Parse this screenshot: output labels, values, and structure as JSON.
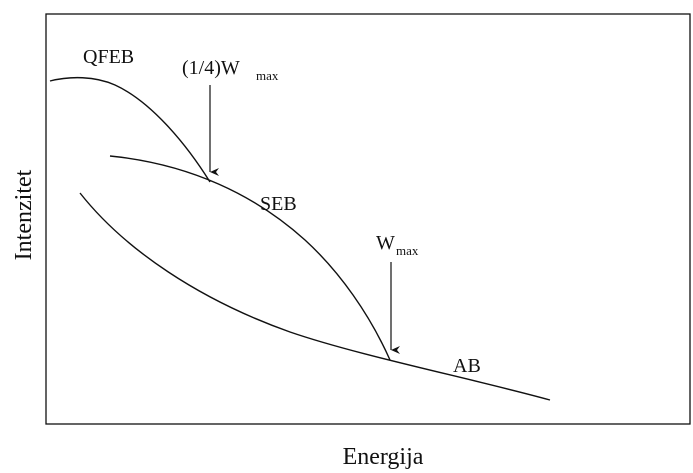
{
  "labels": {
    "xlabel": "Energija",
    "ylabel": "Intenzitet",
    "qfeb": "QFEB",
    "seb": "SEB",
    "ab": "AB",
    "quarter_prefix": "(1/4)W",
    "wmax_w": "W",
    "max_subscript": "max"
  },
  "colors": {
    "ink": "#111111",
    "background": "#ffffff"
  }
}
